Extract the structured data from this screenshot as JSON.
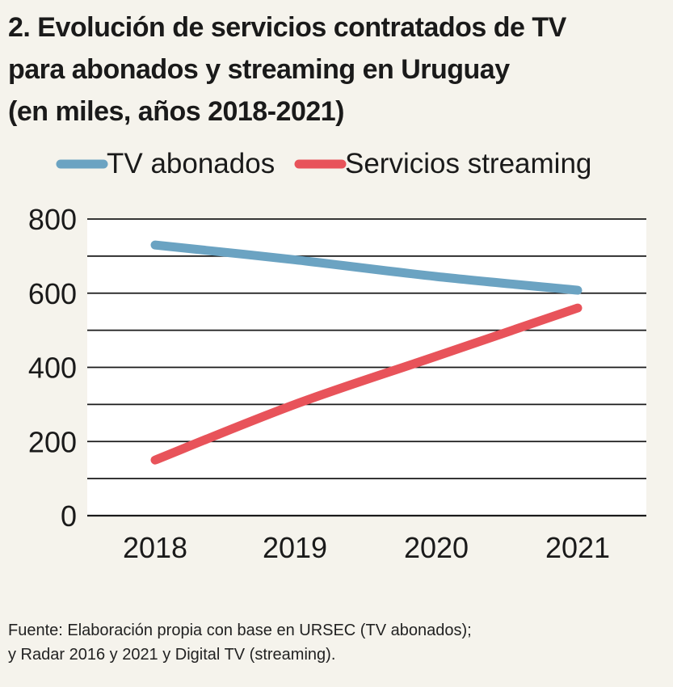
{
  "header": {
    "title_lines": [
      "2. Evolución de servicios contratados de TV",
      "para abonados y streaming en Uruguay",
      "(en miles, años 2018-2021)"
    ]
  },
  "chart_data": {
    "type": "line",
    "title": "2. Evolución de servicios contratados de TV para abonados y streaming en Uruguay (en miles, años 2018-2021)",
    "xlabel": "",
    "ylabel": "",
    "categories": [
      "2018",
      "2019",
      "2020",
      "2021"
    ],
    "ylim": [
      0,
      800
    ],
    "yticks": [
      0,
      200,
      400,
      600,
      800
    ],
    "ytick_labels": [
      "0",
      "200",
      "400",
      "600",
      "800"
    ],
    "grid": true,
    "legend_position": "top",
    "series": [
      {
        "name": "TV abonados",
        "color": "#6ba3c2",
        "values": [
          730,
          690,
          645,
          608
        ]
      },
      {
        "name": "Servicios streaming",
        "color": "#e8535a",
        "values": [
          150,
          300,
          430,
          560
        ]
      }
    ]
  },
  "footer": {
    "source_lines": [
      "Fuente: Elaboración propia con base en URSEC (TV abonados);",
      "y Radar 2016 y 2021 y Digital TV (streaming)."
    ]
  }
}
